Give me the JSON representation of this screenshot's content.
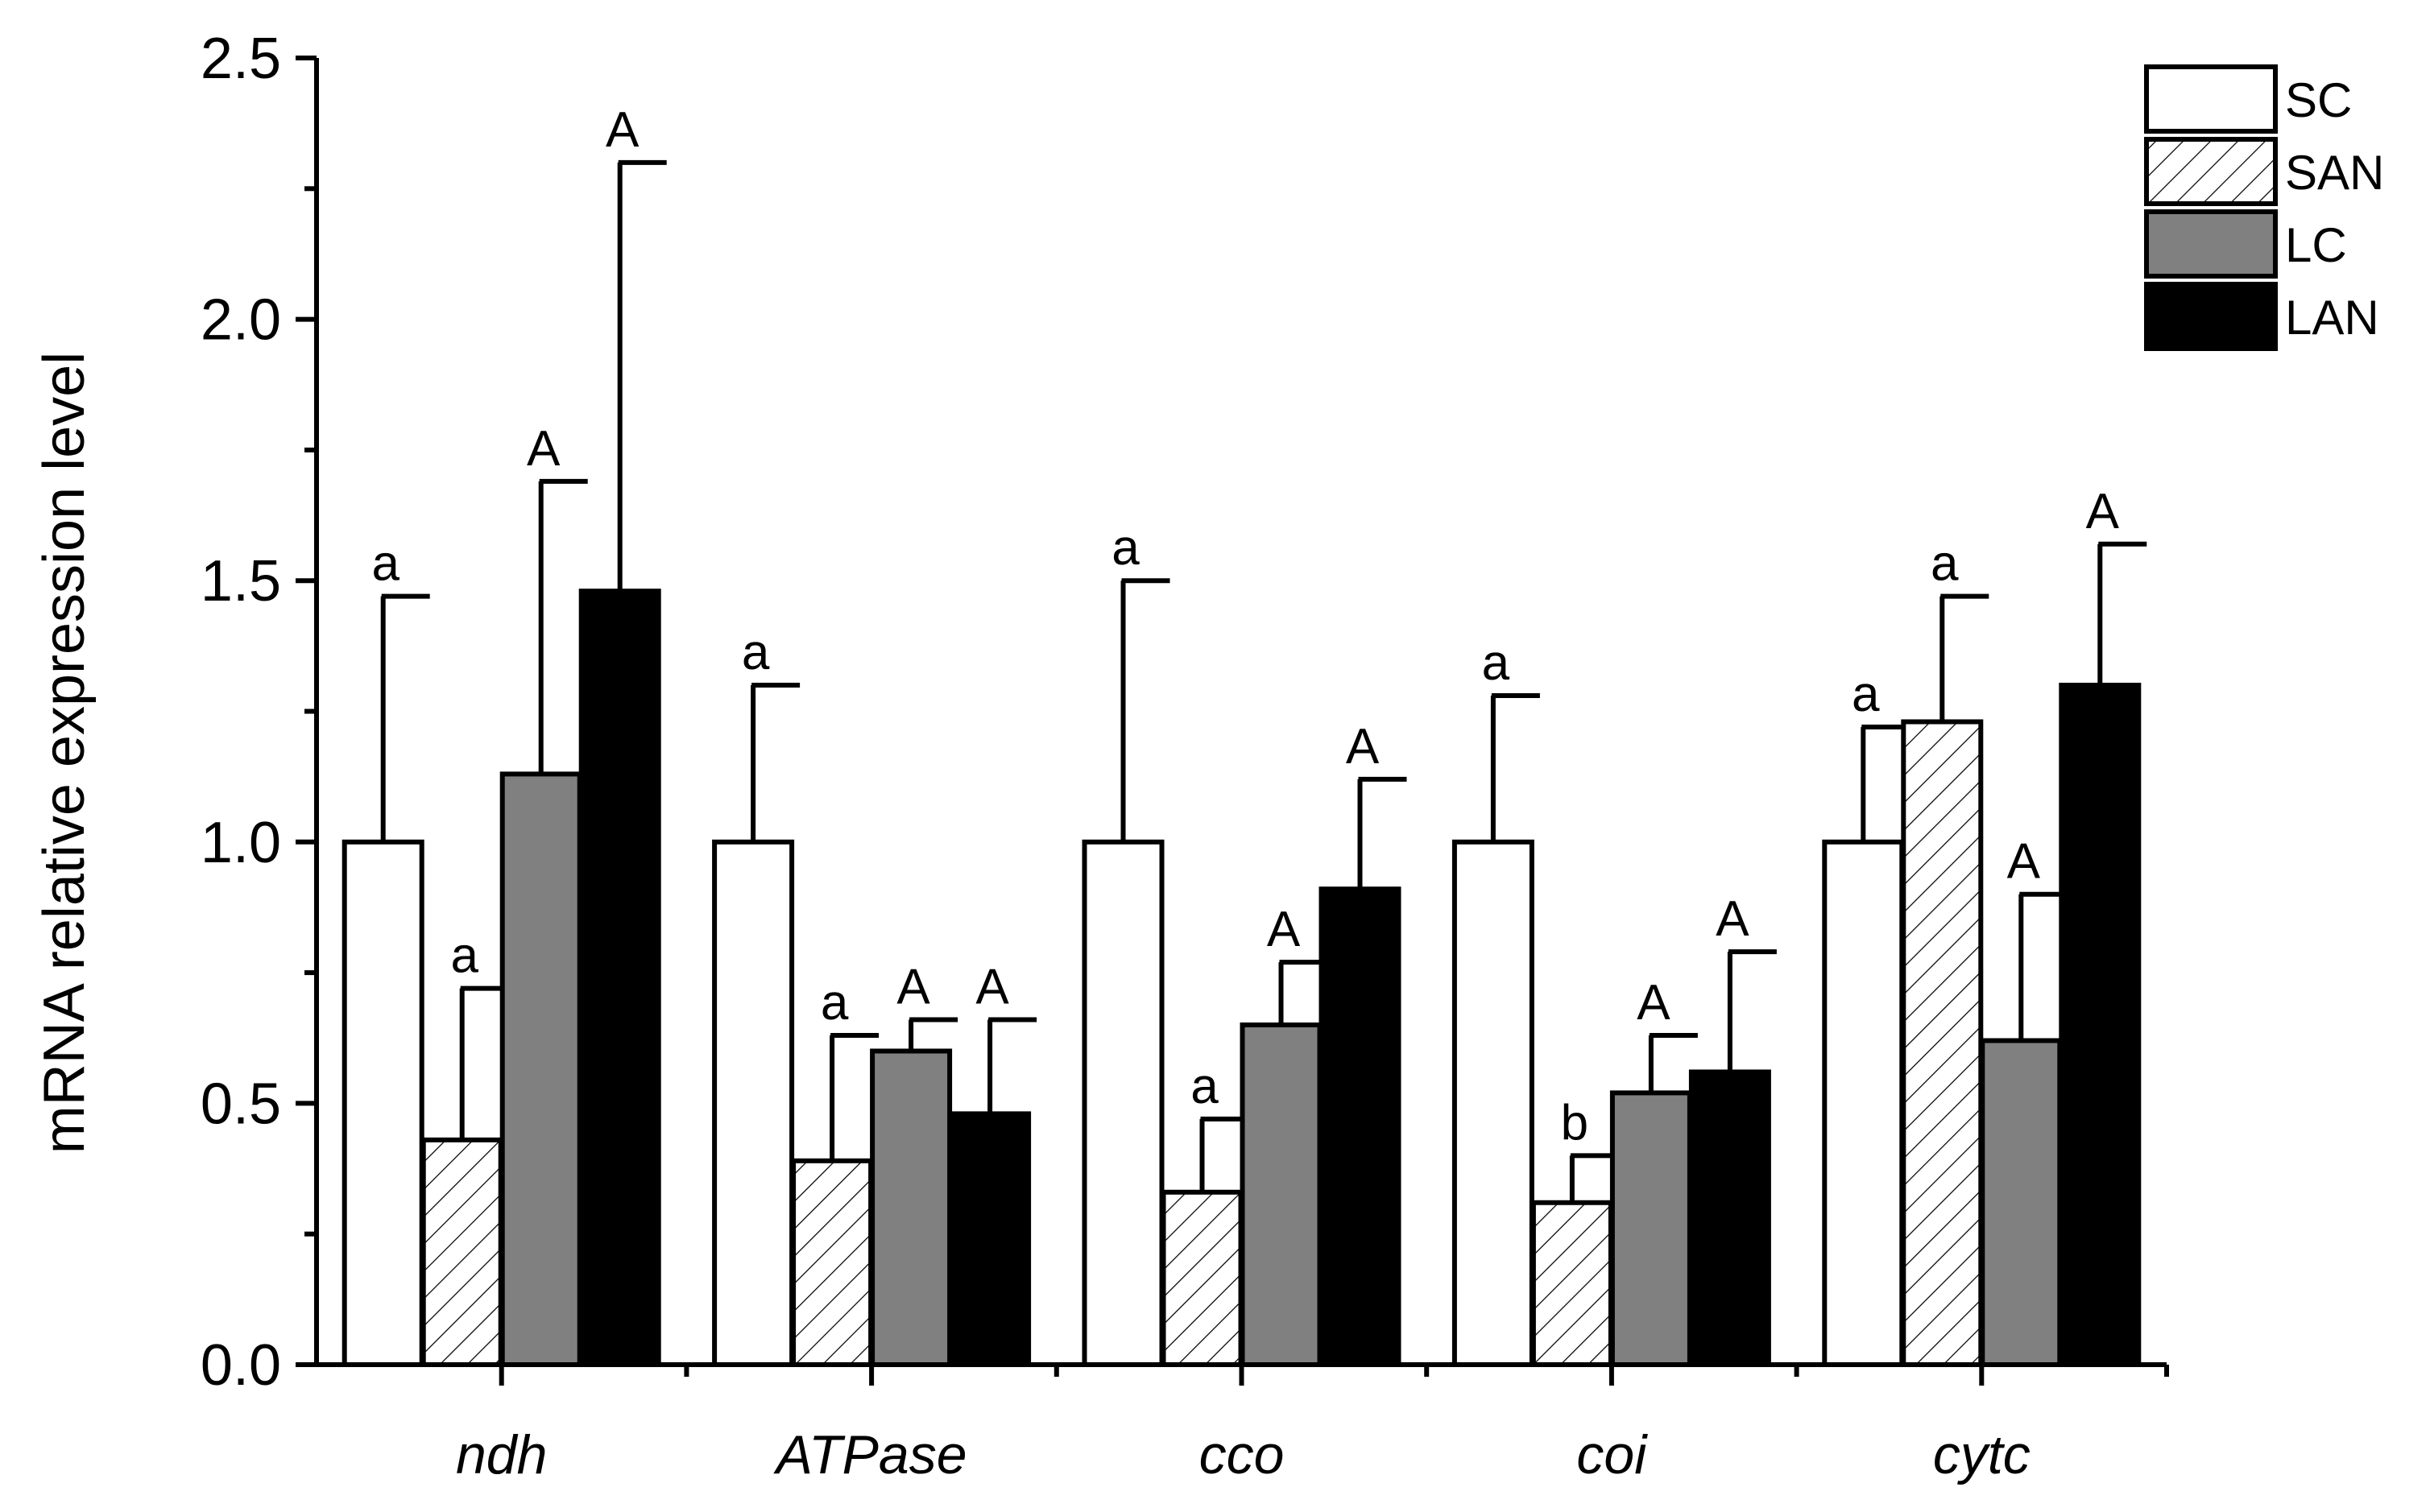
{
  "chart_data": {
    "type": "bar",
    "title": "",
    "xlabel": "",
    "ylabel": "mRNA relative expression level",
    "categories": [
      "ndh",
      "ATPase",
      "cco",
      "coi",
      "cytc"
    ],
    "ylim": [
      0,
      2.5
    ],
    "yticks": [
      0.0,
      0.5,
      1.0,
      1.5,
      2.0,
      2.5
    ],
    "ytick_labels": [
      "0.0",
      "0.5",
      "1.0",
      "1.5",
      "2.0",
      "2.5"
    ],
    "legend_position": "top-right",
    "series": [
      {
        "name": "SC",
        "fill": "#ffffff",
        "pattern": "none",
        "values": [
          1.0,
          1.0,
          1.0,
          1.0,
          1.0
        ],
        "errors": [
          0.47,
          0.3,
          0.5,
          0.28,
          0.22
        ],
        "labels": [
          "a",
          "a",
          "a",
          "a",
          "a"
        ]
      },
      {
        "name": "SAN",
        "fill": "#ffffff",
        "pattern": "hatch",
        "values": [
          0.43,
          0.39,
          0.33,
          0.31,
          1.23
        ],
        "errors": [
          0.29,
          0.24,
          0.14,
          0.09,
          0.24
        ],
        "labels": [
          "a",
          "a",
          "a",
          "b",
          "a"
        ]
      },
      {
        "name": "LC",
        "fill": "#808080",
        "pattern": "none",
        "values": [
          1.13,
          0.6,
          0.65,
          0.52,
          0.62
        ],
        "errors": [
          0.56,
          0.06,
          0.12,
          0.11,
          0.28
        ],
        "labels": [
          "A",
          "A",
          "A",
          "A",
          "A"
        ]
      },
      {
        "name": "LAN",
        "fill": "#000000",
        "pattern": "none",
        "values": [
          1.48,
          0.48,
          0.91,
          0.56,
          1.3
        ],
        "errors": [
          0.82,
          0.18,
          0.21,
          0.23,
          0.27
        ],
        "labels": [
          "A",
          "A",
          "A",
          "A",
          "A"
        ]
      }
    ]
  }
}
